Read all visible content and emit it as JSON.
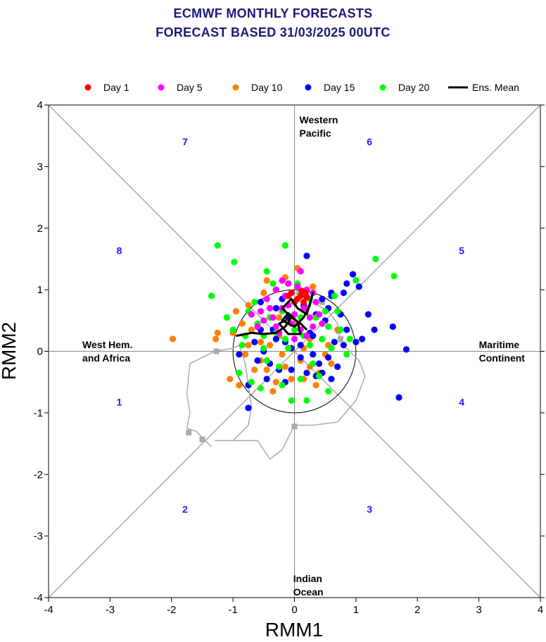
{
  "title_line1": "ECMWF MONTHLY FORECASTS",
  "title_line2": "FORECAST  BASED 31/03/2025 00UTC",
  "legend": [
    {
      "label": "Day 1",
      "color": "#ff0000",
      "kind": "dot"
    },
    {
      "label": "Day 5",
      "color": "#ff00ff",
      "kind": "dot"
    },
    {
      "label": "Day 10",
      "color": "#ff8000",
      "kind": "dot"
    },
    {
      "label": "Day 15",
      "color": "#0000ff",
      "kind": "dot"
    },
    {
      "label": "Day 20",
      "color": "#00ff00",
      "kind": "dot"
    },
    {
      "label": "Ens. Mean",
      "color": "#000000",
      "kind": "line"
    }
  ],
  "chart_data": {
    "type": "scatter",
    "xlabel": "RMM1",
    "ylabel": "RMM2",
    "xlim": [
      -4,
      4
    ],
    "ylim": [
      -4,
      4
    ],
    "xticks": [
      -4,
      -3,
      -2,
      -1,
      0,
      1,
      2,
      3,
      4
    ],
    "yticks": [
      -4,
      -3,
      -2,
      -1,
      0,
      1,
      2,
      3,
      4
    ],
    "unit_circle_radius": 1,
    "region_labels": [
      {
        "text": [
          "Western",
          "Pacific"
        ],
        "x": 0.08,
        "y": 3.7
      },
      {
        "text": [
          "Indian",
          "Ocean"
        ],
        "x": -0.02,
        "y": -3.75
      },
      {
        "text": [
          "West Hem.",
          "and Africa"
        ],
        "x": -3.45,
        "y": 0.05
      },
      {
        "text": [
          "Maritime",
          "Continent"
        ],
        "x": 3.0,
        "y": 0.05
      }
    ],
    "phase_labels": [
      {
        "text": "1",
        "x": -2.85,
        "y": -0.88
      },
      {
        "text": "2",
        "x": -1.78,
        "y": -2.62
      },
      {
        "text": "3",
        "x": 1.22,
        "y": -2.62
      },
      {
        "text": "4",
        "x": 2.72,
        "y": -0.88
      },
      {
        "text": "5",
        "x": 2.72,
        "y": 1.58
      },
      {
        "text": "6",
        "x": 1.22,
        "y": 3.35
      },
      {
        "text": "7",
        "x": -1.78,
        "y": 3.35
      },
      {
        "text": "8",
        "x": -2.85,
        "y": 1.58
      }
    ],
    "observed_track": {
      "color": "#aaaaaa",
      "points": [
        [
          -1.35,
          -1.55
        ],
        [
          -1.6,
          -1.3
        ],
        [
          -1.75,
          -1.25
        ],
        [
          -1.7,
          -1.0
        ],
        [
          -1.75,
          -0.7
        ],
        [
          -1.7,
          -0.2
        ],
        [
          -1.3,
          0.0
        ],
        [
          -1.0,
          0.05
        ],
        [
          -0.9,
          0.1
        ],
        [
          -0.8,
          -0.2
        ],
        [
          -0.7,
          -0.9
        ],
        [
          -0.75,
          -1.2
        ],
        [
          -1.0,
          -1.45
        ],
        [
          -1.3,
          -1.45
        ],
        [
          -0.6,
          -1.45
        ],
        [
          -0.4,
          -1.75
        ],
        [
          -0.2,
          -1.6
        ],
        [
          0.0,
          -1.2
        ],
        [
          0.3,
          -1.2
        ],
        [
          0.7,
          -1.15
        ],
        [
          1.0,
          -0.8
        ],
        [
          1.15,
          -0.4
        ],
        [
          1.05,
          -0.15
        ],
        [
          0.9,
          0.0
        ],
        [
          0.75,
          0.15
        ],
        [
          0.7,
          0.45
        ],
        [
          0.55,
          0.65
        ],
        [
          0.2,
          0.85
        ],
        [
          0.0,
          0.95
        ],
        [
          -0.2,
          0.9
        ]
      ],
      "markers": [
        [
          -1.72,
          -1.32
        ],
        [
          -1.5,
          -1.43
        ],
        [
          -1.27,
          0.0
        ],
        [
          0.0,
          -1.22
        ],
        [
          0.72,
          0.33
        ],
        [
          0.75,
          0.2
        ],
        [
          0.45,
          0.8
        ],
        [
          0.08,
          0.95
        ]
      ]
    },
    "ensemble_mean": {
      "color": "#000000",
      "points": [
        [
          -0.95,
          0.25
        ],
        [
          -0.7,
          0.3
        ],
        [
          -0.5,
          0.28
        ],
        [
          -0.3,
          0.3
        ],
        [
          -0.15,
          0.4
        ],
        [
          -0.05,
          0.55
        ],
        [
          -0.25,
          0.45
        ],
        [
          -0.1,
          0.28
        ],
        [
          0.1,
          0.28
        ],
        [
          0.05,
          0.48
        ],
        [
          -0.1,
          0.62
        ],
        [
          -0.2,
          0.5
        ],
        [
          0.0,
          0.4
        ],
        [
          0.15,
          0.55
        ],
        [
          0.25,
          0.75
        ],
        [
          0.3,
          0.95
        ],
        [
          0.2,
          0.6
        ],
        [
          0.05,
          0.7
        ],
        [
          -0.05,
          0.85
        ],
        [
          -0.2,
          0.7
        ],
        [
          -0.05,
          0.55
        ],
        [
          0.1,
          0.45
        ],
        [
          0.2,
          0.35
        ]
      ]
    },
    "series": [
      {
        "name": "Day 1",
        "color": "#ff0000",
        "points": [
          [
            0.05,
            0.85
          ],
          [
            0.1,
            0.9
          ],
          [
            0.15,
            0.8
          ],
          [
            -0.05,
            0.95
          ],
          [
            0.12,
            0.98
          ],
          [
            0.2,
            0.88
          ],
          [
            0.0,
            0.8
          ],
          [
            -0.1,
            0.9
          ],
          [
            0.18,
            0.95
          ]
        ]
      },
      {
        "name": "Day 5",
        "color": "#ff00ff",
        "points": [
          [
            -0.3,
            1.0
          ],
          [
            -0.2,
            0.7
          ],
          [
            0.1,
            1.3
          ],
          [
            0.3,
            0.4
          ],
          [
            -0.5,
            0.5
          ],
          [
            -0.1,
            1.1
          ],
          [
            0.2,
            1.0
          ],
          [
            -0.4,
            0.7
          ],
          [
            0.35,
            0.8
          ],
          [
            -0.6,
            0.4
          ],
          [
            0.0,
            0.6
          ],
          [
            -0.25,
            0.3
          ],
          [
            0.25,
            0.55
          ],
          [
            -0.15,
            0.9
          ],
          [
            0.05,
            1.05
          ],
          [
            -0.45,
            0.85
          ],
          [
            0.15,
            0.7
          ],
          [
            -0.35,
            0.55
          ],
          [
            0.4,
            0.6
          ],
          [
            -0.05,
            0.45
          ],
          [
            -0.55,
            0.65
          ],
          [
            0.1,
            0.35
          ],
          [
            -0.2,
            1.15
          ],
          [
            0.3,
            0.95
          ],
          [
            -0.7,
            0.6
          ],
          [
            0.0,
            0.2
          ],
          [
            -0.3,
            0.4
          ],
          [
            0.2,
            0.25
          ],
          [
            -0.1,
            0.75
          ],
          [
            0.45,
            0.45
          ]
        ]
      },
      {
        "name": "Day 10",
        "color": "#ff8000",
        "points": [
          [
            -1.98,
            0.2
          ],
          [
            -1.28,
            0.2
          ],
          [
            -1.25,
            0.3
          ],
          [
            -1.0,
            0.3
          ],
          [
            -1.05,
            -0.45
          ],
          [
            -0.9,
            -0.55
          ],
          [
            -0.95,
            0.65
          ],
          [
            -0.75,
            0.1
          ],
          [
            -0.55,
            -0.15
          ],
          [
            -0.6,
            0.45
          ],
          [
            -0.45,
            -0.3
          ],
          [
            -0.35,
            -0.65
          ],
          [
            -0.3,
            1.0
          ],
          [
            -0.15,
            1.2
          ],
          [
            -0.05,
            -0.45
          ],
          [
            0.05,
            1.35
          ],
          [
            0.2,
            0.7
          ],
          [
            0.35,
            -0.55
          ],
          [
            0.45,
            0.2
          ],
          [
            0.55,
            0.1
          ],
          [
            0.25,
            -0.25
          ],
          [
            -0.25,
            0.25
          ],
          [
            -0.5,
            0.95
          ],
          [
            0.1,
            -0.15
          ],
          [
            -0.7,
            0.35
          ],
          [
            -0.85,
            0.45
          ],
          [
            0.6,
            -0.2
          ],
          [
            -0.4,
            0.1
          ],
          [
            0.15,
            0.05
          ],
          [
            -0.15,
            -0.25
          ],
          [
            0.4,
            -0.35
          ],
          [
            -0.65,
            -0.3
          ],
          [
            -0.25,
            0.55
          ],
          [
            0.05,
            0.45
          ],
          [
            -0.45,
            1.15
          ],
          [
            0.3,
            1.05
          ],
          [
            -0.8,
            -0.05
          ],
          [
            0.7,
            0.35
          ],
          [
            -0.3,
            -0.5
          ],
          [
            0.15,
            -0.45
          ],
          [
            -0.55,
            0.15
          ],
          [
            -0.2,
            -0.05
          ],
          [
            0.5,
            -0.05
          ],
          [
            -0.75,
            0.75
          ],
          [
            0.25,
            0.2
          ]
        ]
      },
      {
        "name": "Day 15",
        "color": "#0000ff",
        "points": [
          [
            1.82,
            0.03
          ],
          [
            1.7,
            -0.75
          ],
          [
            1.6,
            0.4
          ],
          [
            1.3,
            0.35
          ],
          [
            1.2,
            0.6
          ],
          [
            1.1,
            0.2
          ],
          [
            1.0,
            0.15
          ],
          [
            0.95,
            1.25
          ],
          [
            0.85,
            1.1
          ],
          [
            0.8,
            0.95
          ],
          [
            0.6,
            0.9
          ],
          [
            0.55,
            -0.1
          ],
          [
            0.45,
            -0.35
          ],
          [
            0.35,
            -0.4
          ],
          [
            0.2,
            1.55
          ],
          [
            0.1,
            -0.1
          ],
          [
            -0.05,
            0.05
          ],
          [
            -0.15,
            -0.5
          ],
          [
            -0.25,
            -0.3
          ],
          [
            -0.3,
            0.2
          ],
          [
            -0.45,
            -0.45
          ],
          [
            -0.55,
            0.8
          ],
          [
            -0.6,
            -0.15
          ],
          [
            -0.75,
            -0.55
          ],
          [
            -0.75,
            -0.92
          ],
          [
            -0.9,
            -0.05
          ],
          [
            0.3,
            -0.05
          ],
          [
            0.5,
            0.5
          ],
          [
            0.65,
            0.15
          ],
          [
            -0.35,
            0.35
          ],
          [
            0.4,
            -0.2
          ],
          [
            0.25,
            0.3
          ],
          [
            -0.1,
            0.55
          ],
          [
            0.7,
            -0.25
          ],
          [
            -0.5,
            0.0
          ],
          [
            0.15,
            0.75
          ],
          [
            0.55,
            0.7
          ],
          [
            -0.2,
            0.85
          ],
          [
            0.85,
            0.35
          ],
          [
            -0.4,
            -0.2
          ],
          [
            0.35,
            0.6
          ],
          [
            0.6,
            -0.45
          ],
          [
            -0.65,
            0.15
          ],
          [
            0.1,
            0.1
          ],
          [
            0.75,
            0.6
          ],
          [
            -0.05,
            -0.3
          ],
          [
            0.45,
            0.85
          ],
          [
            -0.3,
            0.7
          ],
          [
            0.2,
            -0.35
          ],
          [
            0.8,
            0.1
          ],
          [
            -0.15,
            0.15
          ],
          [
            0.6,
            0.95
          ],
          [
            1.05,
            1.05
          ],
          [
            -0.55,
            0.35
          ],
          [
            0.3,
            0.25
          ]
        ]
      },
      {
        "name": "Day 20",
        "color": "#00ff00",
        "points": [
          [
            -1.25,
            1.72
          ],
          [
            -1.35,
            0.9
          ],
          [
            -1.1,
            0.55
          ],
          [
            -1.0,
            0.35
          ],
          [
            -0.98,
            1.45
          ],
          [
            -0.9,
            -0.35
          ],
          [
            -0.8,
            0.25
          ],
          [
            -0.7,
            -0.5
          ],
          [
            -0.6,
            0.45
          ],
          [
            -0.5,
            0.05
          ],
          [
            -0.45,
            -0.15
          ],
          [
            -0.4,
            0.55
          ],
          [
            -0.35,
            1.1
          ],
          [
            -0.3,
            0.3
          ],
          [
            -0.25,
            -0.25
          ],
          [
            -0.15,
            1.72
          ],
          [
            -0.15,
            0.2
          ],
          [
            -0.05,
            -0.8
          ],
          [
            0.0,
            0.35
          ],
          [
            0.1,
            -0.45
          ],
          [
            0.2,
            -0.8
          ],
          [
            0.35,
            0.55
          ],
          [
            0.45,
            0.2
          ],
          [
            0.5,
            0.65
          ],
          [
            0.55,
            0.4
          ],
          [
            0.65,
            0.9
          ],
          [
            0.75,
            0.35
          ],
          [
            0.9,
            0.2
          ],
          [
            1.0,
            1.15
          ],
          [
            1.32,
            1.5
          ],
          [
            1.62,
            1.22
          ],
          [
            0.85,
            -0.05
          ],
          [
            0.25,
            0.1
          ],
          [
            -0.2,
            0.65
          ],
          [
            -0.55,
            -0.6
          ],
          [
            0.3,
            -0.2
          ],
          [
            -0.65,
            0.8
          ],
          [
            0.15,
            0.25
          ],
          [
            -0.85,
            0.1
          ],
          [
            0.4,
            -0.4
          ],
          [
            -0.45,
            1.3
          ],
          [
            0.05,
            1.1
          ],
          [
            0.6,
            0.05
          ],
          [
            -0.75,
            0.65
          ],
          [
            0.7,
            0.65
          ],
          [
            -0.2,
            -0.55
          ],
          [
            0.25,
            0.85
          ],
          [
            -0.1,
            0.05
          ],
          [
            0.55,
            -0.65
          ],
          [
            -0.5,
            0.25
          ],
          [
            0.1,
            0.55
          ]
        ]
      }
    ]
  }
}
